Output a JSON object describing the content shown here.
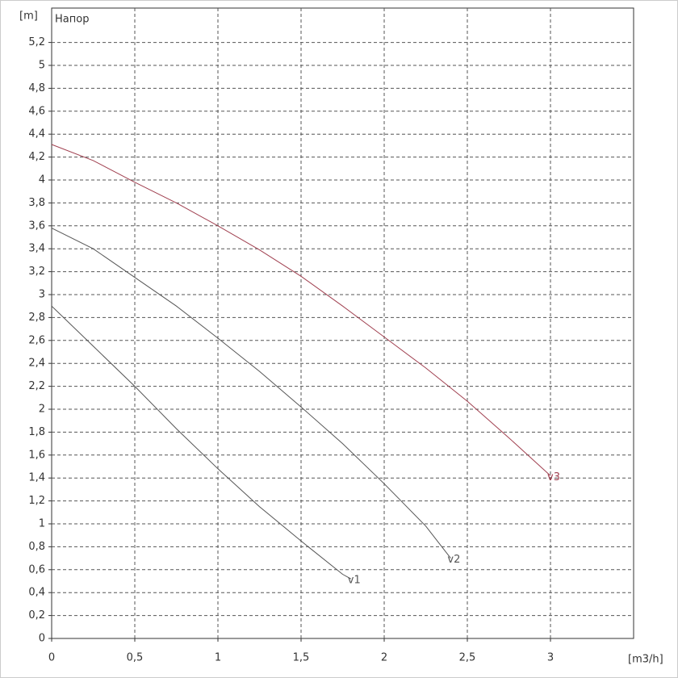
{
  "chart_data": {
    "type": "line",
    "title": "Напор",
    "y_label": "[m]",
    "x_label": "[m3/h]",
    "xlim": [
      0,
      3.5
    ],
    "ylim": [
      0,
      5.5
    ],
    "grid": true,
    "xticks": [
      0,
      {
        "value": 0.5,
        "label": "0,5"
      },
      1,
      {
        "value": 1.5,
        "label": "1,5"
      },
      2,
      {
        "value": 2.5,
        "label": "2,5"
      },
      3
    ],
    "yticks": [
      0,
      {
        "value": 0.2,
        "label": "0,2"
      },
      {
        "value": 0.4,
        "label": "0,4"
      },
      {
        "value": 0.6,
        "label": "0,6"
      },
      {
        "value": 0.8,
        "label": "0,8"
      },
      1,
      {
        "value": 1.2,
        "label": "1,2"
      },
      {
        "value": 1.4,
        "label": "1,4"
      },
      {
        "value": 1.6,
        "label": "1,6"
      },
      {
        "value": 1.8,
        "label": "1,8"
      },
      2,
      {
        "value": 2.2,
        "label": "2,2"
      },
      {
        "value": 2.4,
        "label": "2,4"
      },
      {
        "value": 2.6,
        "label": "2,6"
      },
      {
        "value": 2.8,
        "label": "2,8"
      },
      3,
      {
        "value": 3.2,
        "label": "3,2"
      },
      {
        "value": 3.4,
        "label": "3,4"
      },
      {
        "value": 3.6,
        "label": "3,6"
      },
      {
        "value": 3.8,
        "label": "3,8"
      },
      4,
      {
        "value": 4.2,
        "label": "4,2"
      },
      {
        "value": 4.4,
        "label": "4,4"
      },
      {
        "value": 4.6,
        "label": "4,6"
      },
      {
        "value": 4.8,
        "label": "4,8"
      },
      5,
      {
        "value": 5.2,
        "label": "5,2"
      }
    ],
    "series": [
      {
        "name": "v1",
        "color": "#555555",
        "x": [
          0,
          0.25,
          0.5,
          0.75,
          1,
          1.25,
          1.5,
          1.75,
          1.8
        ],
        "values": [
          2.9,
          2.55,
          2.2,
          1.83,
          1.48,
          1.15,
          0.85,
          0.56,
          0.52
        ]
      },
      {
        "name": "v2",
        "color": "#555555",
        "x": [
          0,
          0.25,
          0.5,
          0.75,
          1,
          1.25,
          1.5,
          1.75,
          2,
          2.25,
          2.4
        ],
        "values": [
          3.58,
          3.4,
          3.15,
          2.9,
          2.62,
          2.33,
          2.02,
          1.7,
          1.35,
          0.98,
          0.7
        ]
      },
      {
        "name": "v3",
        "color": "#a04050",
        "x": [
          0,
          0.25,
          0.5,
          0.75,
          1,
          1.25,
          1.5,
          1.75,
          2,
          2.25,
          2.5,
          2.75,
          3
        ],
        "values": [
          4.31,
          4.17,
          3.98,
          3.8,
          3.6,
          3.39,
          3.16,
          2.9,
          2.63,
          2.36,
          2.07,
          1.75,
          1.42
        ]
      }
    ]
  }
}
